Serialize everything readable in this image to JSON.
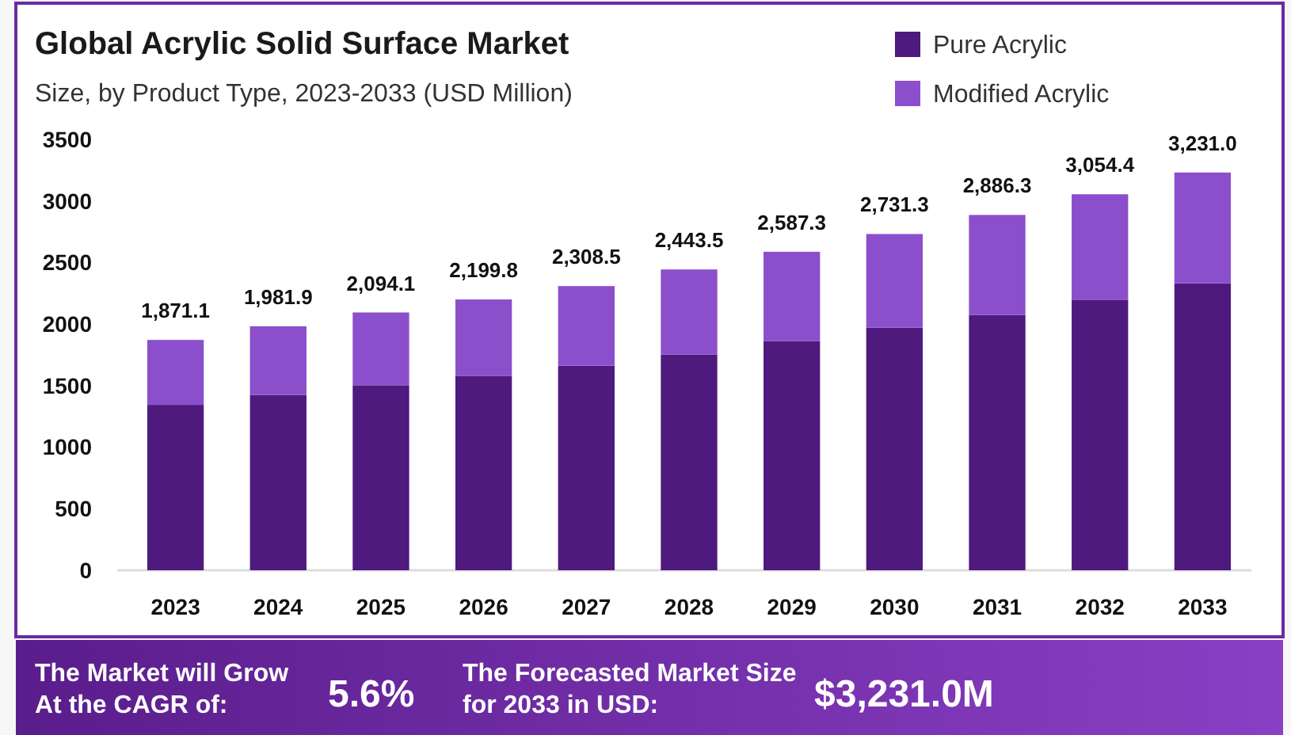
{
  "chart_data": {
    "type": "bar",
    "stacked": true,
    "title": "Global Acrylic Solid Surface Market",
    "subtitle": "Size, by Product Type, 2023-2033 (USD Million)",
    "categories": [
      "2023",
      "2024",
      "2025",
      "2026",
      "2027",
      "2028",
      "2029",
      "2030",
      "2031",
      "2032",
      "2033"
    ],
    "series": [
      {
        "name": "Pure Acrylic",
        "color": "#4e1a7e",
        "values": [
          1344,
          1425,
          1503,
          1580,
          1662,
          1752,
          1863,
          1971,
          2074,
          2198,
          2331
        ]
      },
      {
        "name": "Modified Acrylic",
        "color": "#8b4fcc",
        "values": [
          527.1,
          556.9,
          591.1,
          619.8,
          646.5,
          691.5,
          724.3,
          760.3,
          812.3,
          856.4,
          900.0
        ]
      }
    ],
    "totals": [
      "1,871.1",
      "1,981.9",
      "2,094.1",
      "2,199.8",
      "2,308.5",
      "2,443.5",
      "2,587.3",
      "2,731.3",
      "2,886.3",
      "3,054.4",
      "3,231.0"
    ],
    "ylim": [
      0,
      3500
    ],
    "yticks": [
      0,
      500,
      1000,
      1500,
      2000,
      2500,
      3000,
      3500
    ],
    "grid": false,
    "legend": "top right",
    "annotations": [
      "The Market will Grow At the CAGR of:",
      "5.6%",
      "The Forecasted Market Size for 2033 in USD:",
      "$3,231.0M"
    ]
  }
}
